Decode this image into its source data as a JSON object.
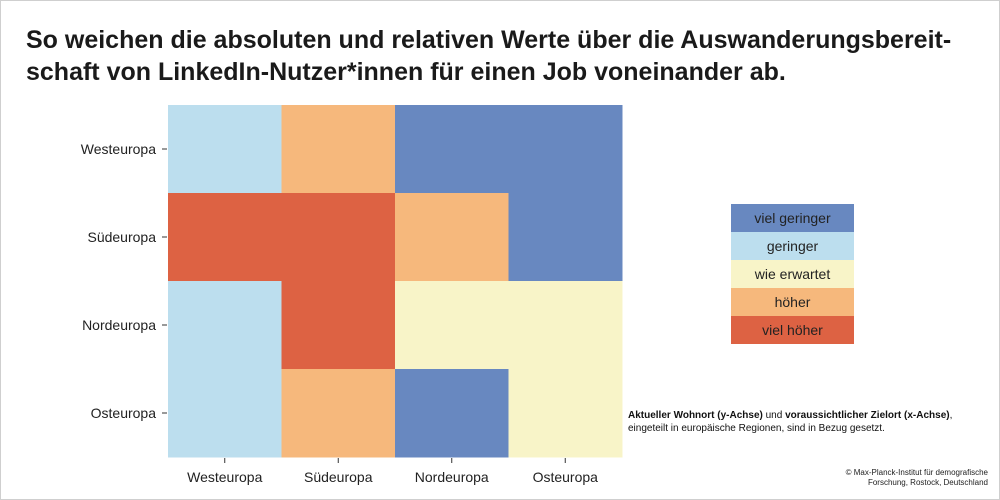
{
  "title_line1": "So weichen die absoluten und relativen Werte über die Auswanderungsbereit-",
  "title_line2": "schaft von LinkedIn-Nutzer*innen für einen Job voneinander ab.",
  "colors": {
    "viel geringer": "#6888c0",
    "geringer": "#bcdeee",
    "wie erwartet": "#f8f4c8",
    "höher": "#f6b87c",
    "viel höher": "#dd6243"
  },
  "legend": {
    "items": [
      {
        "label": "viel geringer",
        "color": "#6888c0"
      },
      {
        "label": "geringer",
        "color": "#bcdeee"
      },
      {
        "label": "wie erwartet",
        "color": "#f8f4c8"
      },
      {
        "label": "höher",
        "color": "#f6b87c"
      },
      {
        "label": "viel höher",
        "color": "#dd6243"
      }
    ]
  },
  "note": {
    "bold1": "Aktueller Wohnort (y-Achse)",
    "text1": " und ",
    "bold2": "voraussichtlicher Zielort (x-Achse)",
    "text2": ",",
    "line2": "eingeteilt in europäische Regionen, sind in Bezug gesetzt."
  },
  "copyright_line1": "© Max-Planck-Institut für demografische",
  "copyright_line2": "Forschung, Rostock, Deutschland",
  "chart_data": {
    "type": "heatmap",
    "x_categories": [
      "Westeuropa",
      "Südeuropa",
      "Nordeuropa",
      "Osteuropa"
    ],
    "y_categories": [
      "Westeuropa",
      "Südeuropa",
      "Nordeuropa",
      "Osteuropa"
    ],
    "cells": [
      [
        "geringer",
        "höher",
        "viel geringer",
        "viel geringer"
      ],
      [
        "viel höher",
        "viel höher",
        "höher",
        "viel geringer"
      ],
      [
        "geringer",
        "viel höher",
        "wie erwartet",
        "wie erwartet"
      ],
      [
        "geringer",
        "höher",
        "viel geringer",
        "wie erwartet"
      ]
    ],
    "legend_position": "right"
  }
}
